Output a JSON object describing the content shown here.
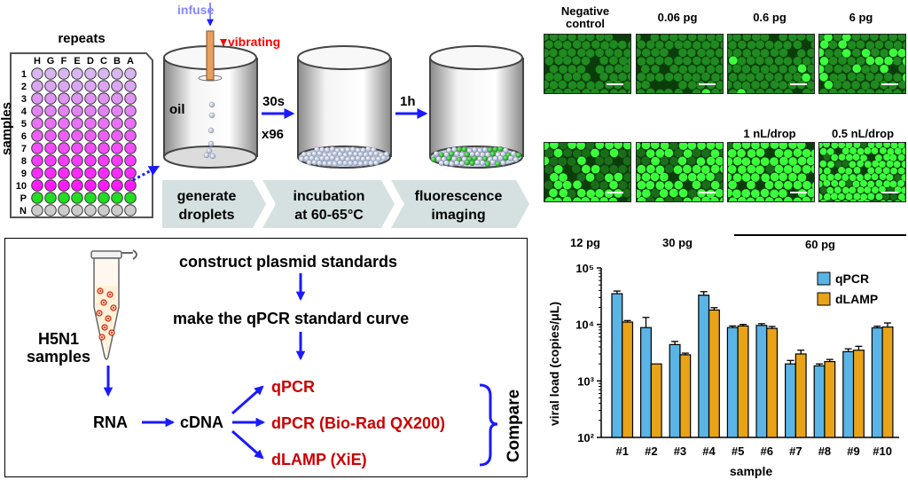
{
  "workflow": {
    "infuse_label": "infuse",
    "vibrating_label": "vibrating",
    "plate_repeats_label": "repeats",
    "samples_axis_label": "samples",
    "plate_columns": [
      "H",
      "G",
      "F",
      "E",
      "D",
      "C",
      "B",
      "A"
    ],
    "plate_rows": [
      "1",
      "2",
      "3",
      "4",
      "5",
      "6",
      "7",
      "8",
      "9",
      "10",
      "P",
      "N"
    ],
    "oil_label": "oil",
    "step1_time": "30s",
    "step1_repeat": "x96",
    "step2_time": "1h",
    "stages": [
      {
        "line1": "generate",
        "line2": "droplets"
      },
      {
        "line1": "incubation",
        "line2": "at 60-65°C"
      },
      {
        "line1": "fluorescence",
        "line2": "imaging"
      }
    ],
    "colors": {
      "stage_arrow": "#d5e0e0",
      "plate_purple_light": "#d7b7f0",
      "plate_magenta": "#ff1aff",
      "plate_green": "#22dd22",
      "plate_gray": "#cccccc",
      "arrow_blue": "#1a1aff",
      "vibrate_red": "#ff0000"
    }
  },
  "micrographs": {
    "top_row": [
      "Negative\ncontrol",
      "0.06 pg",
      "0.6 pg",
      "6 pg"
    ],
    "middle_labels": [
      "1 nL/drop",
      "0.5 nL/drop"
    ],
    "bottom_row": [
      "12 pg",
      "30 pg"
    ],
    "bracket_label": "60 pg"
  },
  "pipeline": {
    "step_construct": "construct plasmid standards",
    "step_curve": "make the qPCR standard curve",
    "tube_label_line1": "H5N1",
    "tube_label_line2": "samples",
    "rna": "RNA",
    "cdna": "cDNA",
    "methods": [
      "qPCR",
      "dPCR (Bio-Rad QX200)",
      "dLAMP (XiE)"
    ],
    "compare": "Compare",
    "colors": {
      "method_red": "#cc0000",
      "arrow_blue": "#1a1aff"
    }
  },
  "chart_data": {
    "type": "bar",
    "title": "",
    "xlabel": "sample",
    "ylabel": "viral load (copies/μL)",
    "yscale": "log",
    "ylim": [
      100,
      100000
    ],
    "ytick_labels": [
      "10²",
      "10³",
      "10⁴",
      "10⁵"
    ],
    "ytick_values": [
      100,
      1000,
      10000,
      100000
    ],
    "categories": [
      "#1",
      "#2",
      "#3",
      "#4",
      "#5",
      "#6",
      "#7",
      "#8",
      "#9",
      "#10"
    ],
    "series": [
      {
        "name": "qPCR",
        "color": "#5ab4e5",
        "values": [
          35000,
          8800,
          4400,
          33000,
          8800,
          9600,
          2000,
          1850,
          3300,
          8700
        ],
        "errors": [
          4000,
          4500,
          600,
          5000,
          600,
          700,
          300,
          150,
          400,
          600
        ]
      },
      {
        "name": "dLAMP",
        "color": "#e8a317",
        "values": [
          11000,
          2000,
          2900,
          18000,
          9400,
          8500,
          3000,
          2200,
          3500,
          9000
        ],
        "errors": [
          700,
          0,
          200,
          1800,
          600,
          700,
          500,
          200,
          600,
          1600
        ]
      }
    ],
    "legend_position": "top-right"
  }
}
